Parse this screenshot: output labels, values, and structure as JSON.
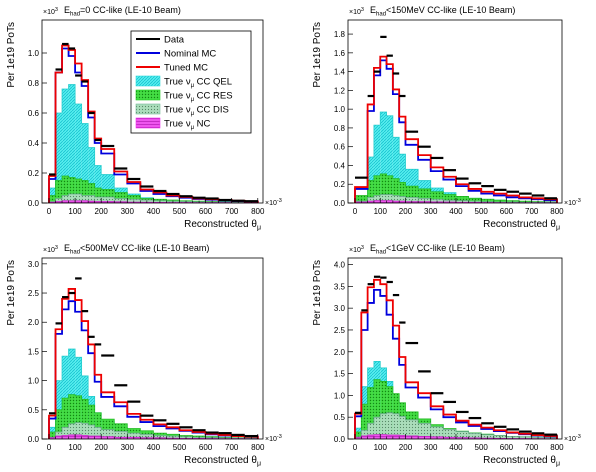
{
  "figure": {
    "exp_y": "×10",
    "exp_y_sup": "3",
    "exp_x": "×10",
    "exp_x_sup": "-3"
  },
  "legend": {
    "entries": [
      {
        "label": "Data",
        "color": "#000000",
        "style": "line"
      },
      {
        "label": "Nominal MC",
        "color": "#0000dd",
        "style": "line"
      },
      {
        "label": "Tuned MC",
        "color": "#ee0000",
        "style": "line"
      },
      {
        "label": "True ν_μ CC QEL",
        "text": "True ν",
        "sub": "μ",
        "rest": " CC QEL",
        "color": "#33dddd",
        "style": "fill"
      },
      {
        "label": "True ν_μ CC RES",
        "text": "True ν",
        "sub": "μ",
        "rest": " CC RES",
        "color": "#22cc22",
        "style": "fill"
      },
      {
        "label": "True ν_μ CC DIS",
        "text": "True ν",
        "sub": "μ",
        "rest": " CC DIS",
        "color": "#77bb99",
        "style": "fill"
      },
      {
        "label": "True ν_μ NC",
        "text": "True ν",
        "sub": "μ",
        "rest": " NC",
        "color": "#ee33ee",
        "style": "fill"
      }
    ]
  },
  "chart_data": [
    {
      "type": "bar",
      "title": "E_had=0 CC-like (LE-10 Beam)",
      "title_main": "E",
      "title_sub": "had",
      "title_rest": "=0 CC-like (LE-10 Beam)",
      "xlabel": "Reconstructed θ_μ",
      "xlabel_main": "Reconstructed θ",
      "xlabel_sub": "μ",
      "ylabel": "Per 1e19 PoTs",
      "xlim": [
        0,
        820
      ],
      "ylim": [
        0,
        1.22
      ],
      "x_scale_label": "×10^-3",
      "y_scale_label": "×10^3",
      "xticks": [
        0,
        100,
        200,
        300,
        400,
        500,
        600,
        700,
        800
      ],
      "yticks": [
        0,
        0.2,
        0.4,
        0.6,
        0.8,
        1.0
      ],
      "ytick_labels": [
        "0.0",
        "0.2",
        "0.4",
        "0.6",
        "0.8",
        "1.0"
      ],
      "bin_edges": [
        0,
        25,
        50,
        75,
        100,
        125,
        150,
        175,
        200,
        250,
        300,
        350,
        400,
        450,
        500,
        550,
        600,
        650,
        700,
        750,
        800
      ],
      "series": [
        {
          "name": "Tuned MC",
          "values": [
            0.18,
            0.87,
            1.05,
            1.02,
            0.93,
            0.82,
            0.61,
            0.43,
            0.36,
            0.21,
            0.14,
            0.09,
            0.07,
            0.05,
            0.04,
            0.03,
            0.025,
            0.02,
            0.015,
            0.01
          ]
        },
        {
          "name": "Nominal MC",
          "values": [
            0.16,
            0.87,
            1.03,
            0.98,
            0.87,
            0.78,
            0.57,
            0.4,
            0.33,
            0.19,
            0.13,
            0.08,
            0.06,
            0.045,
            0.035,
            0.027,
            0.022,
            0.017,
            0.013,
            0.009
          ]
        },
        {
          "name": "Data",
          "values": [
            0.19,
            0.89,
            1.06,
            1.03,
            0.85,
            0.81,
            0.6,
            0.42,
            0.38,
            0.23,
            0.16,
            0.11,
            0.08,
            0.06,
            0.045,
            0.035,
            0.03,
            0.02,
            0.015,
            0.012
          ]
        },
        {
          "name": "True ν_μ CC QEL",
          "values": [
            0.1,
            0.6,
            0.76,
            0.79,
            0.66,
            0.53,
            0.37,
            0.25,
            0.19,
            0.1,
            0.06,
            0.035,
            0.022,
            0.015,
            0.01,
            0.007,
            0.005,
            0.004,
            0.003,
            0.002
          ]
        },
        {
          "name": "True ν_μ CC RES",
          "values": [
            0.05,
            0.15,
            0.18,
            0.17,
            0.16,
            0.15,
            0.13,
            0.1,
            0.09,
            0.07,
            0.05,
            0.03,
            0.025,
            0.02,
            0.015,
            0.012,
            0.01,
            0.008,
            0.006,
            0.005
          ]
        },
        {
          "name": "True ν_μ CC DIS",
          "values": [
            0.01,
            0.03,
            0.05,
            0.06,
            0.06,
            0.05,
            0.05,
            0.04,
            0.04,
            0.03,
            0.025,
            0.02,
            0.015,
            0.012,
            0.01,
            0.008,
            0.006,
            0.005,
            0.004,
            0.003
          ]
        },
        {
          "name": "True ν_μ NC",
          "values": [
            0.005,
            0.01,
            0.015,
            0.015,
            0.015,
            0.015,
            0.012,
            0.01,
            0.01,
            0.008,
            0.006,
            0.005,
            0.004,
            0.003,
            0.003,
            0.002,
            0.002,
            0.002,
            0.001,
            0.001
          ]
        }
      ]
    },
    {
      "type": "bar",
      "title": "E_had<150MeV CC-like (LE-10 Beam)",
      "title_main": "E",
      "title_sub": "had",
      "title_rest": "<150MeV CC-like (LE-10 Beam)",
      "xlabel": "Reconstructed θ_μ",
      "xlabel_main": "Reconstructed θ",
      "xlabel_sub": "μ",
      "ylabel": "Per 1e19 PoTs",
      "xlim": [
        0,
        820
      ],
      "ylim": [
        0,
        1.95
      ],
      "x_scale_label": "×10^-3",
      "y_scale_label": "×10^3",
      "xticks": [
        0,
        100,
        200,
        300,
        400,
        500,
        600,
        700,
        800
      ],
      "yticks": [
        0,
        0.2,
        0.4,
        0.6,
        0.8,
        1.0,
        1.2,
        1.4,
        1.6,
        1.8
      ],
      "ytick_labels": [
        "0.0",
        "0.2",
        "0.4",
        "0.6",
        "0.8",
        "1.0",
        "1.2",
        "1.4",
        "1.6",
        "1.8"
      ],
      "bin_edges": [
        0,
        50,
        75,
        100,
        125,
        150,
        175,
        200,
        250,
        300,
        350,
        400,
        450,
        500,
        550,
        600,
        650,
        700,
        750,
        800
      ],
      "series": [
        {
          "name": "Tuned MC",
          "values": [
            0.17,
            1.05,
            1.44,
            1.56,
            1.48,
            1.21,
            0.92,
            0.68,
            0.51,
            0.38,
            0.28,
            0.2,
            0.15,
            0.12,
            0.1,
            0.08,
            0.06,
            0.05,
            0.04
          ]
        },
        {
          "name": "Nominal MC",
          "values": [
            0.15,
            0.98,
            1.36,
            1.52,
            1.43,
            1.16,
            0.86,
            0.62,
            0.46,
            0.34,
            0.25,
            0.18,
            0.13,
            0.1,
            0.08,
            0.06,
            0.05,
            0.04,
            0.03
          ]
        },
        {
          "name": "Data",
          "values": [
            0.27,
            1.14,
            1.4,
            1.77,
            1.57,
            1.38,
            1.14,
            0.76,
            0.6,
            0.48,
            0.35,
            0.26,
            0.21,
            0.18,
            0.14,
            0.12,
            0.1,
            0.08,
            0.05
          ]
        },
        {
          "name": "True ν_μ CC QEL",
          "values": [
            0.07,
            0.49,
            0.83,
            0.97,
            0.93,
            0.7,
            0.52,
            0.36,
            0.24,
            0.16,
            0.11,
            0.07,
            0.05,
            0.04,
            0.03,
            0.02,
            0.015,
            0.01,
            0.01
          ]
        },
        {
          "name": "True ν_μ CC RES",
          "values": [
            0.08,
            0.24,
            0.29,
            0.31,
            0.29,
            0.26,
            0.22,
            0.18,
            0.15,
            0.12,
            0.09,
            0.07,
            0.05,
            0.04,
            0.03,
            0.025,
            0.02,
            0.015,
            0.01
          ]
        },
        {
          "name": "True ν_μ CC DIS",
          "values": [
            0.02,
            0.06,
            0.08,
            0.09,
            0.09,
            0.08,
            0.07,
            0.06,
            0.05,
            0.04,
            0.03,
            0.025,
            0.02,
            0.015,
            0.01,
            0.01,
            0.008,
            0.006,
            0.005
          ]
        },
        {
          "name": "True ν_μ NC",
          "values": [
            0.01,
            0.02,
            0.025,
            0.025,
            0.025,
            0.02,
            0.02,
            0.015,
            0.015,
            0.012,
            0.01,
            0.008,
            0.006,
            0.005,
            0.004,
            0.003,
            0.003,
            0.002,
            0.002
          ]
        }
      ]
    },
    {
      "type": "bar",
      "title": "E_had<500MeV CC-like (LE-10 Beam)",
      "title_main": "E",
      "title_sub": "had",
      "title_rest": "<500MeV CC-like (LE-10 Beam)",
      "xlabel": "Reconstructed θ_μ",
      "xlabel_main": "Reconstructed θ",
      "xlabel_sub": "μ",
      "ylabel": "Per 1e19 PoTs",
      "xlim": [
        0,
        820
      ],
      "ylim": [
        0,
        3.1
      ],
      "x_scale_label": "×10^-3",
      "y_scale_label": "×10^3",
      "xticks": [
        0,
        100,
        200,
        300,
        400,
        500,
        600,
        700,
        800
      ],
      "yticks": [
        0,
        0.5,
        1.0,
        1.5,
        2.0,
        2.5,
        3.0
      ],
      "ytick_labels": [
        "0.0",
        "0.5",
        "1.0",
        "1.5",
        "2.0",
        "2.5",
        "3.0"
      ],
      "bin_edges": [
        0,
        25,
        50,
        75,
        100,
        125,
        150,
        175,
        200,
        250,
        300,
        350,
        400,
        450,
        500,
        550,
        600,
        650,
        700,
        750,
        800
      ],
      "series": [
        {
          "name": "Tuned MC",
          "values": [
            0.4,
            1.88,
            2.4,
            2.57,
            2.38,
            2.02,
            1.62,
            1.1,
            0.8,
            0.63,
            0.43,
            0.33,
            0.25,
            0.2,
            0.15,
            0.12,
            0.09,
            0.07,
            0.05,
            0.04
          ]
        },
        {
          "name": "Nominal MC",
          "values": [
            0.35,
            1.8,
            2.22,
            2.36,
            2.18,
            1.86,
            1.47,
            0.98,
            0.72,
            0.56,
            0.38,
            0.29,
            0.22,
            0.18,
            0.14,
            0.11,
            0.08,
            0.06,
            0.05,
            0.04
          ]
        },
        {
          "name": "Data",
          "values": [
            0.44,
            1.98,
            2.43,
            2.5,
            2.75,
            2.19,
            1.75,
            1.62,
            1.43,
            0.92,
            0.64,
            0.4,
            0.32,
            0.26,
            0.2,
            0.15,
            0.11,
            0.1,
            0.07,
            0.05
          ]
        },
        {
          "name": "True ν_μ CC QEL",
          "values": [
            0.2,
            1.0,
            1.42,
            1.54,
            1.4,
            1.08,
            0.73,
            0.45,
            0.3,
            0.2,
            0.13,
            0.08,
            0.05,
            0.04,
            0.03,
            0.02,
            0.015,
            0.01,
            0.01,
            0.005
          ]
        },
        {
          "name": "True ν_μ CC RES",
          "values": [
            0.12,
            0.5,
            0.7,
            0.76,
            0.74,
            0.68,
            0.58,
            0.45,
            0.34,
            0.26,
            0.18,
            0.14,
            0.1,
            0.08,
            0.06,
            0.05,
            0.04,
            0.03,
            0.02,
            0.015
          ]
        },
        {
          "name": "True ν_μ CC DIS",
          "values": [
            0.03,
            0.12,
            0.2,
            0.26,
            0.28,
            0.27,
            0.24,
            0.2,
            0.16,
            0.13,
            0.1,
            0.08,
            0.06,
            0.05,
            0.04,
            0.03,
            0.025,
            0.02,
            0.015,
            0.01
          ]
        },
        {
          "name": "True ν_μ NC",
          "values": [
            0.02,
            0.05,
            0.06,
            0.07,
            0.07,
            0.06,
            0.05,
            0.05,
            0.04,
            0.03,
            0.03,
            0.02,
            0.02,
            0.015,
            0.01,
            0.01,
            0.008,
            0.006,
            0.005,
            0.004
          ]
        }
      ]
    },
    {
      "type": "bar",
      "title": "E_had<1GeV CC-like (LE-10 Beam)",
      "title_main": "E",
      "title_sub": "had",
      "title_rest": "<1GeV CC-like (LE-10 Beam)",
      "xlabel": "Reconstructed θ_μ",
      "xlabel_main": "Reconstructed θ",
      "xlabel_sub": "μ",
      "ylabel": "Per 1e19 PoTs",
      "xlim": [
        0,
        820
      ],
      "ylim": [
        0,
        4.15
      ],
      "x_scale_label": "×10^-3",
      "y_scale_label": "×10^3",
      "xticks": [
        0,
        100,
        200,
        300,
        400,
        500,
        600,
        700,
        800
      ],
      "yticks": [
        0,
        0.5,
        1.0,
        1.5,
        2.0,
        2.5,
        3.0,
        3.5,
        4.0
      ],
      "ytick_labels": [
        "0.0",
        "0.5",
        "1.0",
        "1.5",
        "2.0",
        "2.5",
        "3.0",
        "3.5",
        "4.0"
      ],
      "bin_edges": [
        0,
        25,
        50,
        75,
        100,
        125,
        150,
        175,
        200,
        250,
        300,
        350,
        400,
        450,
        500,
        550,
        600,
        650,
        700,
        750,
        800
      ],
      "series": [
        {
          "name": "Tuned MC",
          "values": [
            0.58,
            2.9,
            3.48,
            3.65,
            3.55,
            3.18,
            2.6,
            1.88,
            1.3,
            1.05,
            0.75,
            0.56,
            0.42,
            0.33,
            0.26,
            0.2,
            0.15,
            0.12,
            0.09,
            0.07
          ]
        },
        {
          "name": "Nominal MC",
          "values": [
            0.52,
            2.5,
            3.12,
            3.42,
            3.28,
            2.85,
            2.3,
            1.7,
            1.18,
            0.95,
            0.68,
            0.5,
            0.38,
            0.3,
            0.23,
            0.18,
            0.14,
            0.11,
            0.08,
            0.06
          ]
        },
        {
          "name": "Data",
          "values": [
            0.6,
            2.95,
            3.55,
            3.72,
            3.7,
            3.6,
            3.3,
            2.67,
            2.2,
            1.55,
            1.05,
            0.85,
            0.62,
            0.48,
            0.36,
            0.28,
            0.22,
            0.17,
            0.13,
            0.1
          ]
        },
        {
          "name": "True ν_μ CC QEL",
          "values": [
            0.25,
            1.2,
            1.63,
            1.78,
            1.63,
            1.32,
            0.98,
            0.64,
            0.42,
            0.28,
            0.18,
            0.12,
            0.08,
            0.06,
            0.04,
            0.03,
            0.02,
            0.015,
            0.01,
            0.008
          ]
        },
        {
          "name": "True ν_μ CC RES",
          "values": [
            0.16,
            0.8,
            1.18,
            1.36,
            1.32,
            1.2,
            1.04,
            0.83,
            0.62,
            0.46,
            0.33,
            0.24,
            0.18,
            0.14,
            0.11,
            0.08,
            0.06,
            0.05,
            0.04,
            0.03
          ]
        },
        {
          "name": "True ν_μ CC DIS",
          "values": [
            0.05,
            0.2,
            0.36,
            0.5,
            0.58,
            0.6,
            0.58,
            0.52,
            0.44,
            0.36,
            0.28,
            0.22,
            0.17,
            0.13,
            0.1,
            0.08,
            0.06,
            0.05,
            0.04,
            0.03
          ]
        },
        {
          "name": "True ν_μ NC",
          "values": [
            0.03,
            0.07,
            0.09,
            0.1,
            0.1,
            0.09,
            0.09,
            0.08,
            0.07,
            0.06,
            0.05,
            0.04,
            0.03,
            0.025,
            0.02,
            0.015,
            0.012,
            0.01,
            0.008,
            0.006
          ]
        }
      ]
    }
  ]
}
